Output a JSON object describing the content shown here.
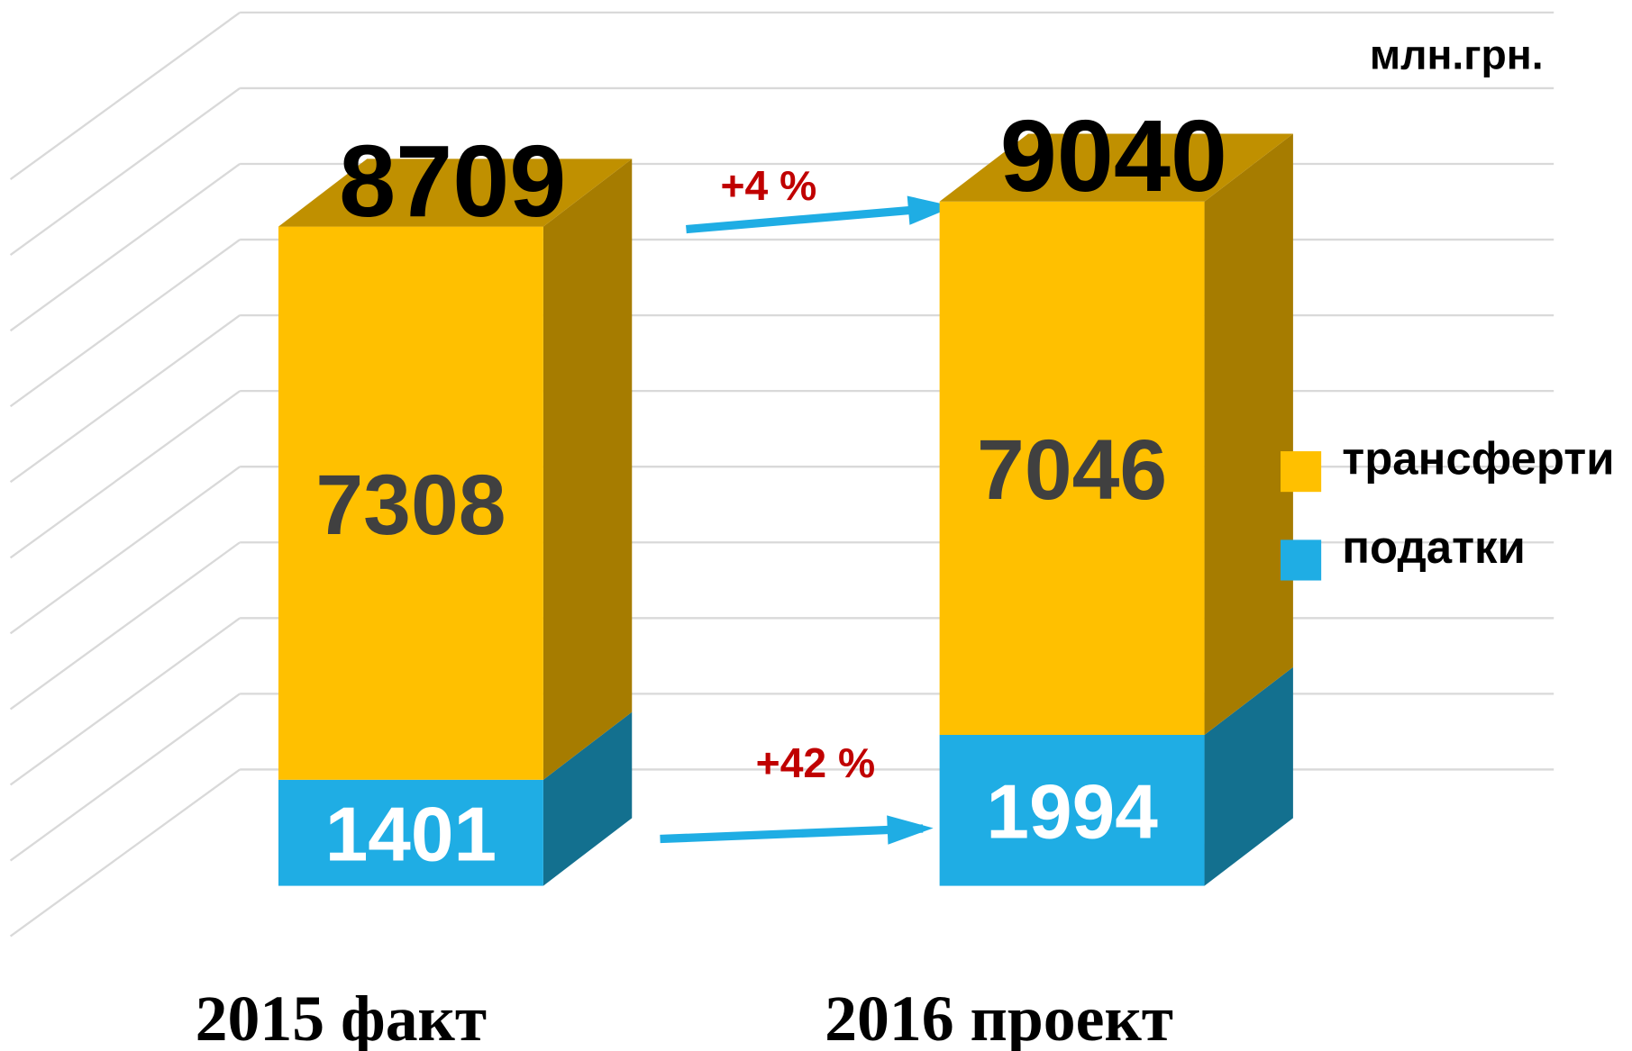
{
  "chart_data": {
    "type": "bar3d_stacked",
    "unit_label": "млн.грн.",
    "categories": [
      "2015 факт",
      "2016 проект"
    ],
    "series": [
      {
        "name": "податки",
        "color": "#1fade4",
        "side_color": "#13708f",
        "label_color": "#ffffff",
        "values": [
          1401,
          1994
        ]
      },
      {
        "name": "трансферти",
        "color": "#ffc000",
        "side_color": "#a67c00",
        "top_color": "#c09000",
        "label_color": "#404040",
        "values": [
          7308,
          7046
        ]
      }
    ],
    "totals": [
      8709,
      9040
    ],
    "annotations": [
      "+4 %",
      "+42 %"
    ],
    "ylim": [
      0,
      11000
    ],
    "yticks": [
      1000,
      2000,
      3000,
      4000,
      5000,
      6000,
      7000,
      8000,
      9000,
      10000,
      11000
    ],
    "grid": true
  }
}
